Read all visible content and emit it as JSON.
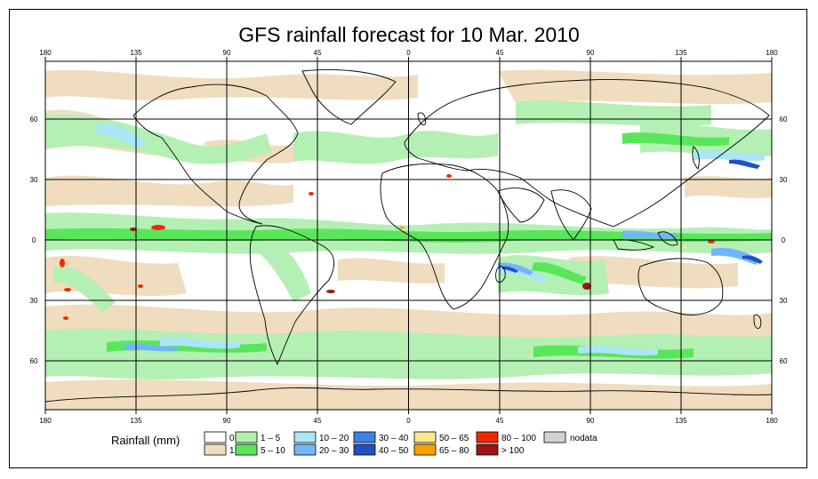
{
  "title": "GFS rainfall forecast for 10 Mar. 2010",
  "map": {
    "lon_labels": [
      "180",
      "135",
      "90",
      "45",
      "0",
      "45",
      "90",
      "135",
      "180"
    ],
    "lat_labels": [
      "60",
      "30",
      "0",
      "30",
      "60"
    ]
  },
  "legend": {
    "title": "Rainfall (mm)",
    "items": [
      {
        "label": "0",
        "color": "#ffffff"
      },
      {
        "label": "1",
        "color": "#f0dcbe"
      },
      {
        "label": "1 – 5",
        "color": "#b4f0b4"
      },
      {
        "label": "5 – 10",
        "color": "#5ae65a"
      },
      {
        "label": "10 – 20",
        "color": "#aae6f5"
      },
      {
        "label": "20 – 30",
        "color": "#73b4ff"
      },
      {
        "label": "30 – 40",
        "color": "#3c82e6"
      },
      {
        "label": "40 – 50",
        "color": "#1e50c8"
      },
      {
        "label": "50 – 65",
        "color": "#ffe68c"
      },
      {
        "label": "65 – 80",
        "color": "#ffa000"
      },
      {
        "label": "80 – 100",
        "color": "#f02800"
      },
      {
        "label": "> 100",
        "color": "#a01414"
      },
      {
        "label": "nodata",
        "color": "#d2d2d2"
      }
    ]
  }
}
